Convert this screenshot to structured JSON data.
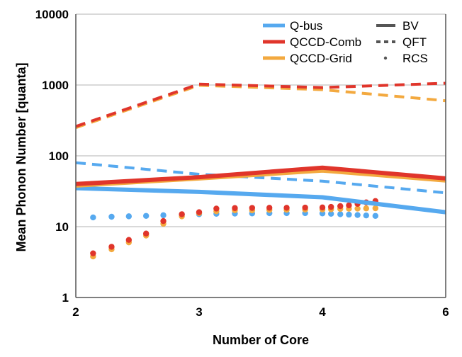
{
  "chart_data": {
    "type": "line",
    "title": "",
    "xlabel": "Number of Core",
    "ylabel": "Mean Phonon Number [quanta]",
    "x_ticks": [
      "2",
      "3",
      "4",
      "6"
    ],
    "y_ticks": [
      "1",
      "10",
      "100",
      "1000",
      "10000"
    ],
    "y_scale": "log",
    "ylim": [
      1,
      10000
    ],
    "grid": "horizontal",
    "legend_placement": "top-right",
    "colors": {
      "Q-bus": "#56a9ef",
      "QCCD-Comb": "#e0352b",
      "QCCD-Grid": "#f3a93f"
    },
    "legend": {
      "architectures": [
        "Q-bus",
        "QCCD-Comb",
        "QCCD-Grid"
      ],
      "benchmarks": [
        {
          "name": "BV",
          "style": "solid"
        },
        {
          "name": "QFT",
          "style": "dashed"
        },
        {
          "name": "RCS",
          "style": "dotted"
        }
      ]
    },
    "series": [
      {
        "architecture": "Q-bus",
        "benchmark": "BV",
        "style": "solid",
        "x": [
          2,
          3,
          4,
          6
        ],
        "y": [
          35,
          31,
          26,
          16
        ]
      },
      {
        "architecture": "QCCD-Comb",
        "benchmark": "BV",
        "style": "solid",
        "x": [
          2,
          3,
          4,
          6
        ],
        "y": [
          40,
          50,
          68,
          48
        ]
      },
      {
        "architecture": "QCCD-Grid",
        "benchmark": "BV",
        "style": "solid",
        "x": [
          2,
          3,
          4,
          6
        ],
        "y": [
          38,
          48,
          62,
          45
        ]
      },
      {
        "architecture": "Q-bus",
        "benchmark": "QFT",
        "style": "dashed",
        "x": [
          2,
          3,
          4,
          6
        ],
        "y": [
          80,
          55,
          44,
          30
        ]
      },
      {
        "architecture": "QCCD-Comb",
        "benchmark": "QFT",
        "style": "dashed",
        "x": [
          2,
          3,
          4,
          6
        ],
        "y": [
          260,
          1030,
          920,
          1060
        ]
      },
      {
        "architecture": "QCCD-Grid",
        "benchmark": "QFT",
        "style": "dashed",
        "x": [
          2,
          3,
          4,
          6
        ],
        "y": [
          250,
          990,
          860,
          600
        ]
      },
      {
        "architecture": "Q-bus",
        "benchmark": "RCS",
        "style": "dotted",
        "x": [
          2.14,
          2.29,
          2.43,
          2.57,
          2.71,
          2.86,
          3.0,
          3.14,
          3.29,
          3.43,
          3.57,
          3.71,
          3.86,
          4.0,
          4.14,
          4.29,
          4.43,
          4.57,
          4.71,
          4.86
        ],
        "y": [
          13.5,
          13.8,
          14.0,
          14.2,
          14.5,
          14.8,
          15.0,
          15.2,
          15.3,
          15.4,
          15.5,
          15.5,
          15.5,
          15.4,
          15.2,
          15.0,
          14.8,
          14.6,
          14.4,
          14.2
        ]
      },
      {
        "architecture": "QCCD-Comb",
        "benchmark": "RCS",
        "style": "dotted",
        "x": [
          2.14,
          2.29,
          2.43,
          2.57,
          2.71,
          2.86,
          3.0,
          3.14,
          3.29,
          3.43,
          3.57,
          3.71,
          3.86,
          4.0,
          4.14,
          4.29,
          4.43,
          4.57,
          4.71,
          4.86
        ],
        "y": [
          4.2,
          5.2,
          6.5,
          8.0,
          12.0,
          15.0,
          16.0,
          18.0,
          18.3,
          18.4,
          18.5,
          18.5,
          18.6,
          18.7,
          19.0,
          19.5,
          20.0,
          21.0,
          22.0,
          23.0
        ]
      },
      {
        "architecture": "QCCD-Grid",
        "benchmark": "RCS",
        "style": "dotted",
        "x": [
          2.14,
          2.29,
          2.43,
          2.57,
          2.71,
          2.86,
          3.0,
          3.14,
          3.29,
          3.43,
          3.57,
          3.71,
          3.86,
          4.0,
          4.14,
          4.29,
          4.43,
          4.57,
          4.71,
          4.86
        ],
        "y": [
          3.8,
          4.8,
          6.0,
          7.5,
          11.0,
          14.0,
          15.5,
          16.5,
          17.0,
          17.0,
          17.2,
          17.3,
          17.4,
          17.5,
          17.6,
          17.8,
          17.9,
          18.0,
          18.1,
          18.2
        ]
      }
    ]
  }
}
